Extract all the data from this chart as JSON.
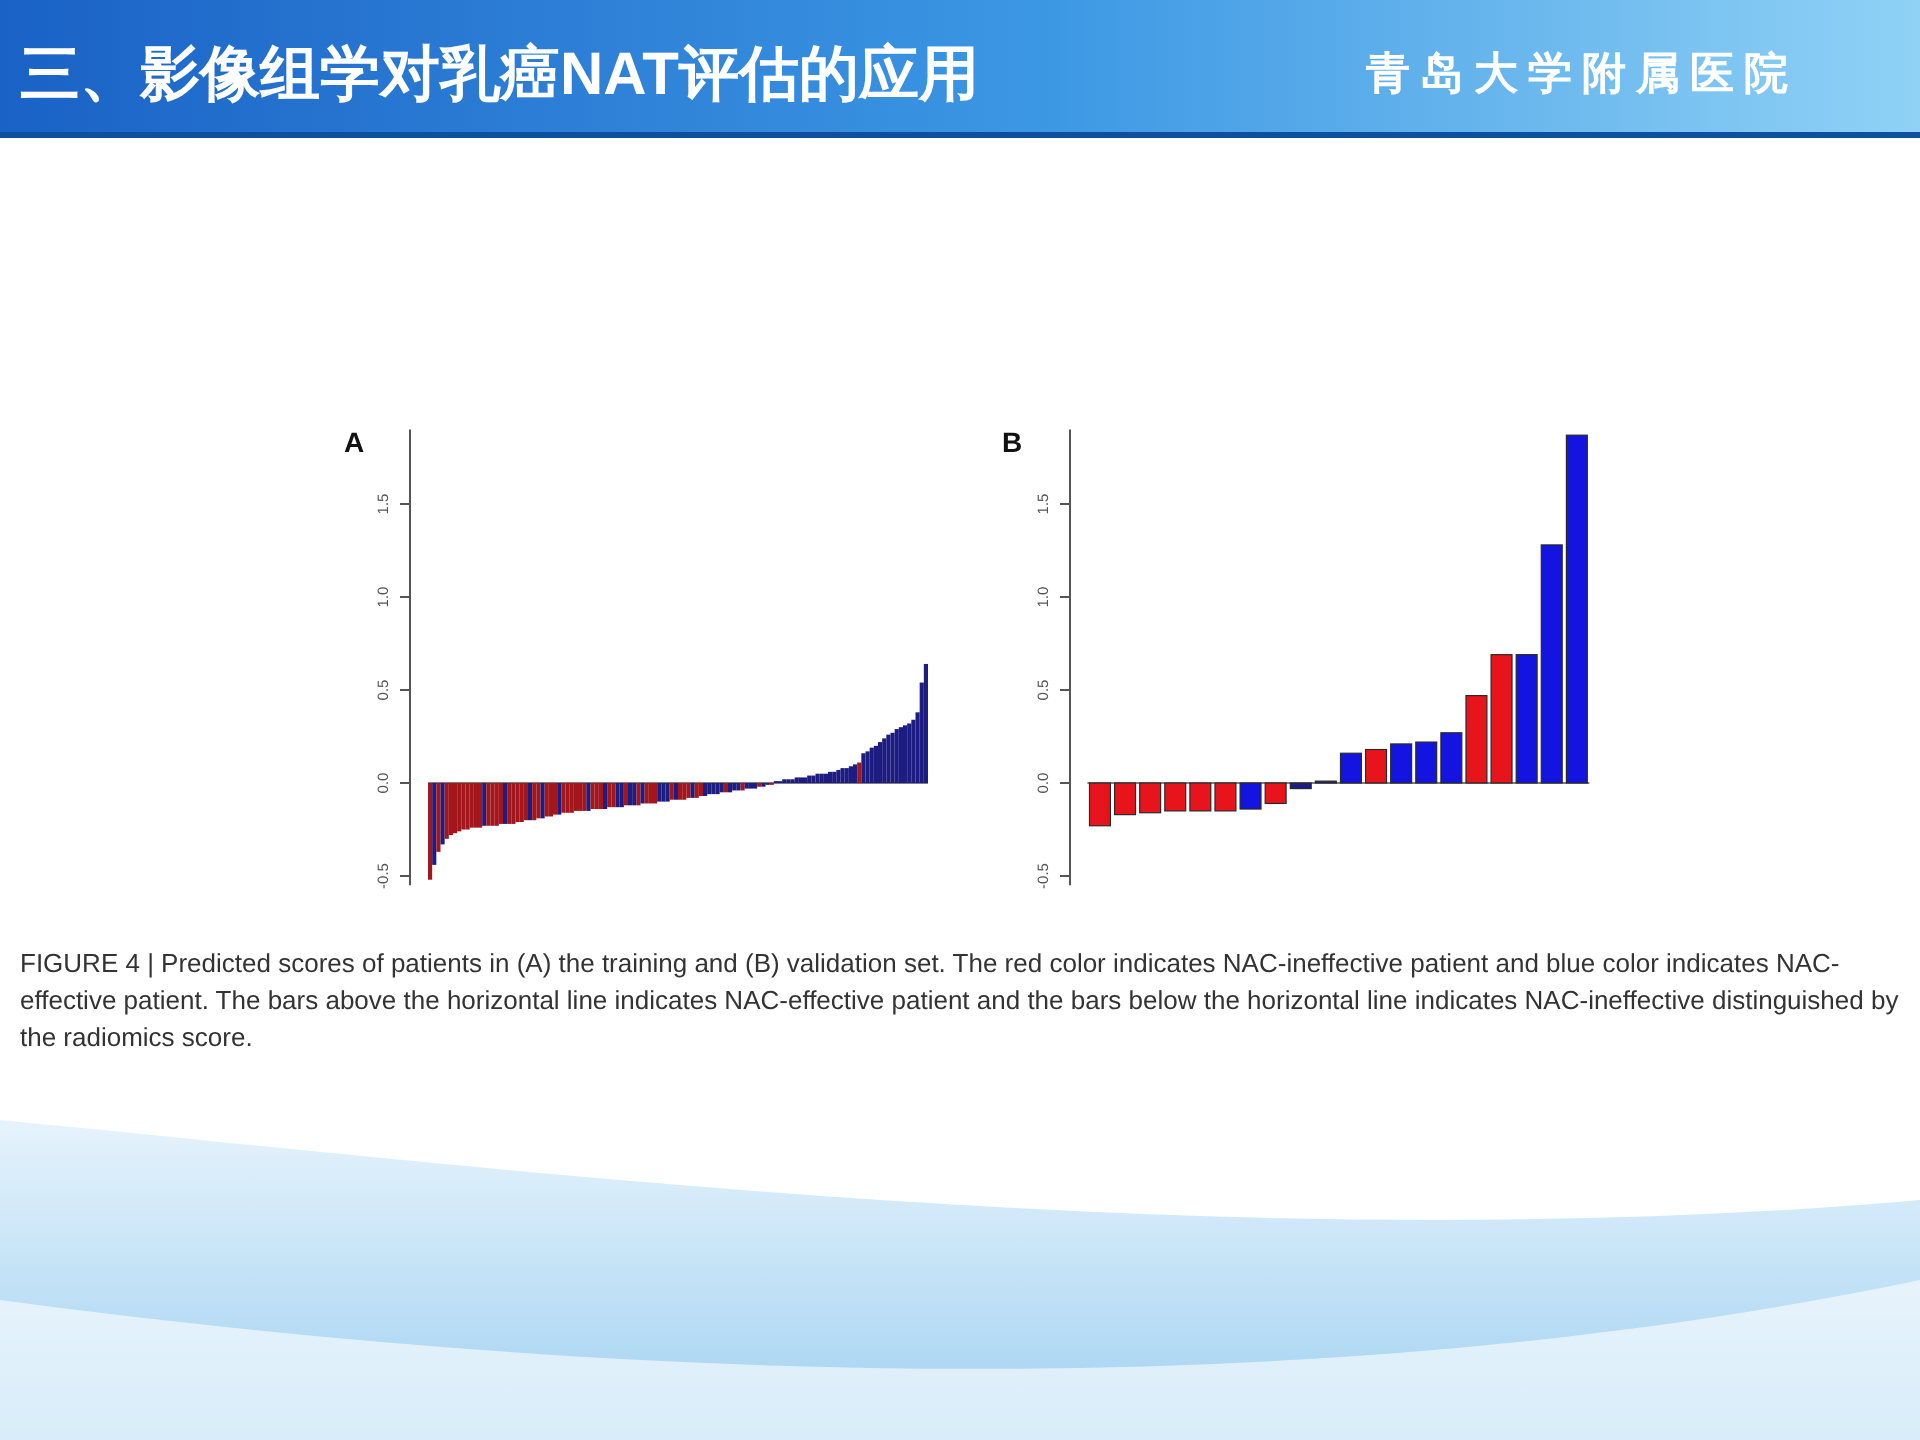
{
  "chart_data": [
    {
      "type": "other",
      "title": "三、影像组学对乳癌NAT评估的应用",
      "subtitle": "青岛大学附属医院"
    },
    {
      "type": "bar",
      "title": "A",
      "tick_labels": "y",
      "ylim": [
        -0.55,
        1.9
      ],
      "yticks": [
        {
          "value": -0.5,
          "label": "-0.5"
        },
        {
          "value": 0,
          "label": "0.0"
        },
        {
          "value": 0.5,
          "label": "0.5"
        },
        {
          "value": 1,
          "label": "1.0"
        },
        {
          "value": 1.5,
          "label": "1.5"
        }
      ],
      "categories": [
        null,
        null,
        null,
        null,
        null,
        null,
        null,
        null,
        null,
        null,
        null,
        null,
        null,
        null,
        null,
        null,
        null,
        null,
        null,
        null,
        null,
        null,
        null,
        null,
        null,
        null,
        null,
        null,
        null,
        null,
        null,
        null,
        null,
        null,
        null,
        null,
        null,
        null,
        null,
        null,
        null,
        null,
        null,
        null,
        null,
        null,
        null,
        null,
        null,
        null,
        null,
        null,
        null,
        null,
        null,
        null,
        null,
        null,
        null,
        null,
        null,
        null,
        null,
        null,
        null,
        null,
        null,
        null,
        null,
        null,
        null,
        null,
        null,
        null,
        null,
        null,
        null,
        null,
        null,
        null,
        null,
        null,
        null,
        null,
        null,
        null,
        null,
        null,
        null,
        null,
        null,
        null,
        null,
        null,
        null,
        null,
        null,
        null,
        null,
        null,
        null,
        null,
        null,
        null,
        null,
        null,
        null,
        null,
        null,
        null,
        null,
        null,
        null,
        null,
        null,
        null,
        null,
        null,
        null,
        null
      ],
      "values": [
        -0.52,
        -0.44,
        -0.37,
        -0.33,
        -0.3,
        -0.28,
        -0.27,
        -0.26,
        -0.25,
        -0.25,
        -0.24,
        -0.24,
        -0.24,
        -0.23,
        -0.23,
        -0.23,
        -0.23,
        -0.22,
        -0.22,
        -0.22,
        -0.22,
        -0.21,
        -0.21,
        -0.2,
        -0.2,
        -0.2,
        -0.19,
        -0.19,
        -0.18,
        -0.18,
        -0.17,
        -0.17,
        -0.16,
        -0.16,
        -0.16,
        -0.15,
        -0.15,
        -0.15,
        -0.15,
        -0.14,
        -0.14,
        -0.14,
        -0.14,
        -0.13,
        -0.13,
        -0.13,
        -0.13,
        -0.12,
        -0.12,
        -0.12,
        -0.12,
        -0.11,
        -0.11,
        -0.11,
        -0.11,
        -0.1,
        -0.1,
        -0.1,
        -0.09,
        -0.09,
        -0.09,
        -0.09,
        -0.08,
        -0.08,
        -0.08,
        -0.07,
        -0.07,
        -0.06,
        -0.06,
        -0.06,
        -0.05,
        -0.05,
        -0.05,
        -0.04,
        -0.04,
        -0.04,
        -0.03,
        -0.03,
        -0.03,
        -0.02,
        -0.02,
        -0.01,
        -0.01,
        0.01,
        0.01,
        0.02,
        0.02,
        0.02,
        0.03,
        0.03,
        0.03,
        0.04,
        0.04,
        0.05,
        0.05,
        0.05,
        0.06,
        0.06,
        0.07,
        0.08,
        0.08,
        0.09,
        0.1,
        0.11,
        0.16,
        0.17,
        0.19,
        0.2,
        0.22,
        0.24,
        0.26,
        0.27,
        0.29,
        0.3,
        0.31,
        0.32,
        0.34,
        0.38,
        0.54,
        0.64
      ],
      "colors": [
        "#a3161c",
        "#1c1c82",
        "#a3161c",
        "#1c1c82",
        "#a3161c",
        "#a3161c",
        "#a3161c",
        "#a3161c",
        "#a3161c",
        "#a3161c",
        "#a3161c",
        "#a3161c",
        "#a3161c",
        "#1c1c82",
        "#a3161c",
        "#a3161c",
        "#a3161c",
        "#a3161c",
        "#1c1c82",
        "#a3161c",
        "#a3161c",
        "#a3161c",
        "#a3161c",
        "#a3161c",
        "#1c1c82",
        "#a3161c",
        "#a3161c",
        "#1c1c82",
        "#a3161c",
        "#a3161c",
        "#a3161c",
        "#1c1c82",
        "#a3161c",
        "#a3161c",
        "#a3161c",
        "#a3161c",
        "#a3161c",
        "#a3161c",
        "#1c1c82",
        "#a3161c",
        "#a3161c",
        "#a3161c",
        "#1c1c82",
        "#a3161c",
        "#a3161c",
        "#1c1c82",
        "#1c1c82",
        "#a3161c",
        "#1c1c82",
        "#1c1c82",
        "#a3161c",
        "#1c1c82",
        "#a3161c",
        "#a3161c",
        "#a3161c",
        "#1c1c82",
        "#1c1c82",
        "#1c1c82",
        "#a3161c",
        "#1c1c82",
        "#a3161c",
        "#a3161c",
        "#a3161c",
        "#1c1c82",
        "#a3161c",
        "#a3161c",
        "#1c1c82",
        "#1c1c82",
        "#1c1c82",
        "#1c1c82",
        "#1c1c82",
        "#a3161c",
        "#1c1c82",
        "#1c1c82",
        "#1c1c82",
        "#a3161c",
        "#1c1c82",
        "#1c1c82",
        "#1c1c82",
        "#a3161c",
        "#1c1c82",
        "#1c1c82",
        "#a3161c",
        "#1c1c82",
        "#1c1c82",
        "#1c1c82",
        "#1c1c82",
        "#1c1c82",
        "#1c1c82",
        "#1c1c82",
        "#1c1c82",
        "#1c1c82",
        "#1c1c82",
        "#1c1c82",
        "#1c1c82",
        "#1c1c82",
        "#1c1c82",
        "#1c1c82",
        "#1c1c82",
        "#1c1c82",
        "#1c1c82",
        "#1c1c82",
        "#1c1c82",
        "#a3161c",
        "#1c1c82",
        "#1c1c82",
        "#1c1c82",
        "#1c1c82",
        "#1c1c82",
        "#1c1c82",
        "#1c1c82",
        "#1c1c82",
        "#1c1c82",
        "#1c1c82",
        "#1c1c82",
        "#1c1c82",
        "#1c1c82",
        "#1c1c82",
        "#1c1c82",
        "#1c1c82"
      ]
    },
    {
      "type": "bar",
      "title": "B",
      "tick_labels": "y",
      "ylim": [
        -0.55,
        1.9
      ],
      "yticks": [
        {
          "value": -0.5,
          "label": "-0.5"
        },
        {
          "value": 0,
          "label": "0.0"
        },
        {
          "value": 0.5,
          "label": "0.5"
        },
        {
          "value": 1,
          "label": "1.0"
        },
        {
          "value": 1.5,
          "label": "1.5"
        }
      ],
      "categories": [
        null,
        null,
        null,
        null,
        null,
        null,
        null,
        null,
        null,
        null,
        null,
        null,
        null,
        null,
        null,
        null,
        null,
        null,
        null,
        null
      ],
      "values": [
        -0.23,
        -0.17,
        -0.16,
        -0.15,
        -0.15,
        -0.15,
        -0.14,
        -0.11,
        -0.03,
        0.01,
        0.16,
        0.18,
        0.21,
        0.22,
        0.27,
        0.47,
        0.69,
        0.69,
        1.28,
        1.87
      ],
      "colors": [
        "#e8141c",
        "#e8141c",
        "#e8141c",
        "#e8141c",
        "#e8141c",
        "#e8141c",
        "#1414e0",
        "#e8141c",
        "#1c1c82",
        "#1c1c82",
        "#1414e0",
        "#e8141c",
        "#1414e0",
        "#1414e0",
        "#1414e0",
        "#e8141c",
        "#e8141c",
        "#1414e0",
        "#1414e0",
        "#1414e0"
      ]
    },
    {
      "type": "other",
      "annotations": [
        "FIGURE 4 | Predicted scores of patients in (A) the training and (B) validation set. The red color indicates NAC-ineffective patient and blue color indicates NAC-effective patient. The bars above the horizontal line indicates NAC-effective patient and the bars below the horizontal line indicates NAC-ineffective distinguished by the radiomics score."
      ]
    }
  ]
}
